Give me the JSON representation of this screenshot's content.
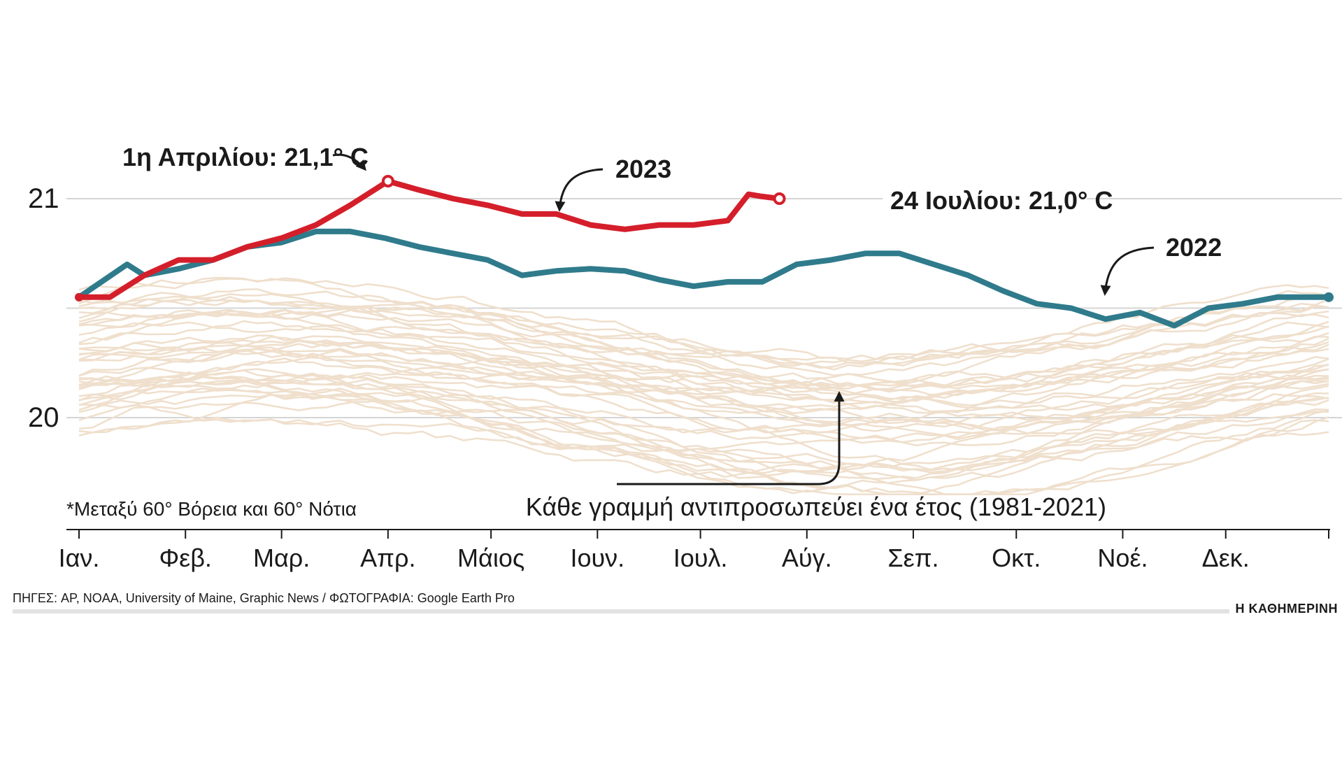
{
  "chart_data": {
    "type": "line",
    "title": "",
    "xlabel": "",
    "ylabel": "",
    "ylim": [
      19.5,
      21.4
    ],
    "yticks": [
      20,
      21
    ],
    "months": [
      "Ιαν.",
      "Φεβ.",
      "Μαρ.",
      "Απρ.",
      "Μάιος",
      "Ιουν.",
      "Ιουλ.",
      "Αύγ.",
      "Σεπ.",
      "Οκτ.",
      "Νοέ.",
      "Δεκ."
    ],
    "series": [
      {
        "name": "2023",
        "color": "#d41f2b",
        "x": [
          1,
          10,
          20,
          30,
          40,
          50,
          60,
          70,
          80,
          91,
          100,
          110,
          120,
          130,
          140,
          150,
          160,
          170,
          180,
          190,
          196,
          200,
          205
        ],
        "values": [
          20.55,
          20.55,
          20.65,
          20.72,
          20.72,
          20.78,
          20.82,
          20.88,
          20.97,
          21.08,
          21.04,
          21.0,
          20.97,
          20.93,
          20.93,
          20.88,
          20.86,
          20.88,
          20.88,
          20.9,
          21.02,
          21.01,
          21.0
        ]
      },
      {
        "name": "2022",
        "color": "#2f7b8c",
        "x": [
          1,
          15,
          20,
          30,
          40,
          50,
          60,
          70,
          80,
          90,
          100,
          110,
          120,
          130,
          140,
          150,
          160,
          170,
          180,
          190,
          200,
          210,
          220,
          230,
          240,
          250,
          260,
          270,
          280,
          290,
          300,
          310,
          320,
          330,
          340,
          350,
          360,
          365
        ],
        "values": [
          20.55,
          20.7,
          20.65,
          20.68,
          20.72,
          20.78,
          20.8,
          20.85,
          20.85,
          20.82,
          20.78,
          20.75,
          20.72,
          20.65,
          20.67,
          20.68,
          20.67,
          20.63,
          20.6,
          20.62,
          20.62,
          20.7,
          20.72,
          20.75,
          20.75,
          20.7,
          20.65,
          20.58,
          20.52,
          20.5,
          20.45,
          20.48,
          20.42,
          20.5,
          20.52,
          20.55,
          20.55,
          20.55
        ]
      }
    ],
    "background_series": {
      "name": "Κάθε γραμμή αντιπροσωπεύει ένα έτος (1981-2021)",
      "color": "#efdfcc",
      "count": 41,
      "range": [
        19.65,
        20.72
      ]
    },
    "annotations": {
      "peak_2023": "1η Απριλίου: 21,1° C",
      "label_2023": "2023",
      "peak_2022": "24 Ιουλίου: 21,0° C",
      "label_2022": "2022",
      "range_note": "*Μεταξύ 60° Βόρεια και 60° Νότια",
      "caption": "Κάθε γραμμή αντιπροσωπεύει ένα έτος (1981-2021)"
    }
  },
  "footer": {
    "source": "ΠΗΓΕΣ: AP, NOAA, University of Maine, Graphic News / ΦΩΤΟΓΡΑΦΙΑ: Google Earth Pro",
    "brand": "Η ΚΑΘΗΜΕΡΙΝΗ"
  }
}
